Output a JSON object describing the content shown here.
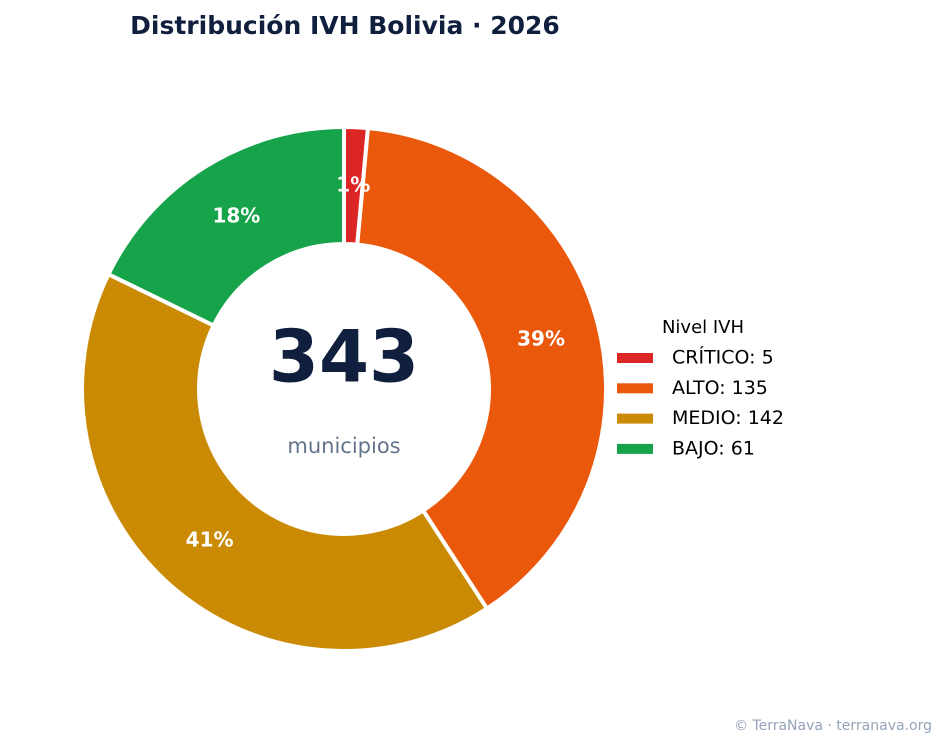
{
  "chart_data": {
    "type": "donut",
    "title": "Distribución IVH Bolivia · 2026",
    "categories": [
      "CRÍTICO: 5",
      "ALTO: 135",
      "MEDIO: 142",
      "BAJO: 61"
    ],
    "values": [
      5,
      135,
      142,
      61
    ],
    "value_labels": [
      "1%",
      "39%",
      "41%",
      "18%"
    ],
    "colors": [
      "#dc2626",
      "#ea580c",
      "#ca8a04",
      "#16a34a"
    ],
    "center_value": "343",
    "center_label": "municipios",
    "legend_title": "Nivel IVH",
    "legend": "right",
    "footer": "© TerraNava · terranava.org"
  }
}
